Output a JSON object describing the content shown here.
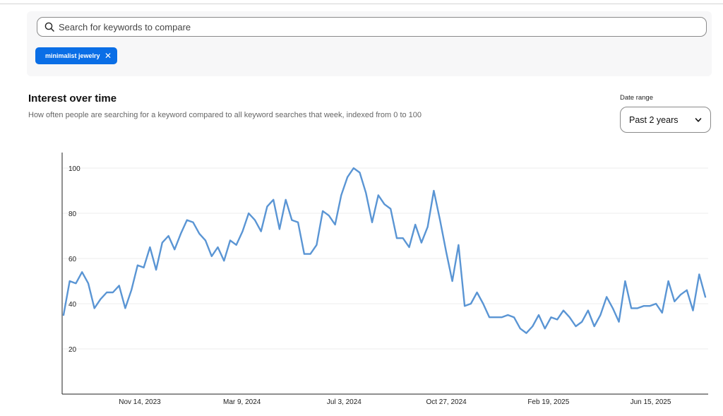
{
  "search": {
    "placeholder": "Search for keywords to compare"
  },
  "chip": {
    "label": "minimalist jewelry",
    "close": "✕"
  },
  "section": {
    "title": "Interest over time",
    "subtitle": "How often people are searching for a keyword compared to all keyword searches that week, indexed from 0 to 100"
  },
  "date_range": {
    "label": "Date range",
    "value": "Past 2 years"
  },
  "colors": {
    "line": "#5a95d4",
    "chip": "#0a6ee6"
  },
  "chart_data": {
    "type": "line",
    "title": "",
    "xlabel": "",
    "ylabel": "",
    "ylim": [
      0,
      105
    ],
    "grid": true,
    "y_ticks": [
      20,
      40,
      60,
      80,
      100
    ],
    "x_tick_labels": [
      "Nov 14, 2023",
      "Mar 9, 2024",
      "Jul 3, 2024",
      "Oct 27, 2024",
      "Feb 19, 2025",
      "Jun 15, 2025"
    ],
    "series": [
      {
        "values": [
          35,
          50,
          49,
          54,
          49,
          38,
          42,
          45,
          45,
          48,
          38,
          46,
          57,
          56,
          65,
          55,
          67,
          70,
          64,
          71,
          77,
          76,
          71,
          68,
          61,
          65,
          59,
          68,
          66,
          72,
          80,
          77,
          72,
          83,
          86,
          73,
          86,
          77,
          76,
          62,
          62,
          66,
          81,
          79,
          75,
          88,
          96,
          100,
          98,
          89,
          76,
          88,
          84,
          82,
          69,
          69,
          65,
          75,
          67,
          74,
          90,
          77,
          63,
          50,
          66,
          39,
          40,
          45,
          40,
          34,
          34,
          34,
          35,
          34,
          29,
          27,
          30,
          35,
          29,
          34,
          33,
          37,
          34,
          30,
          32,
          37,
          30,
          35,
          43,
          38,
          32,
          50,
          38,
          38,
          39,
          39,
          40,
          36,
          50,
          41,
          44,
          46,
          37,
          53,
          43
        ]
      }
    ]
  }
}
